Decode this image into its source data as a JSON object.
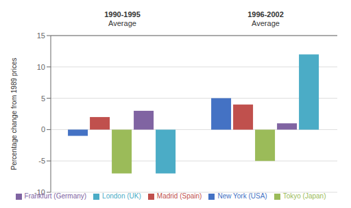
{
  "chart_data": {
    "type": "bar",
    "categories": [
      "1990-1995\nAverage",
      "1996-2002\nAverage"
    ],
    "series": [
      {
        "name": "New York (USA)",
        "color": "#4472C4",
        "values": [
          -1,
          5
        ]
      },
      {
        "name": "Madrid (Spain)",
        "color": "#C0504D",
        "values": [
          2,
          4
        ]
      },
      {
        "name": "Tokyo (Japan)",
        "color": "#9BBB59",
        "values": [
          -7,
          -5
        ]
      },
      {
        "name": "Frankfurt (Germany)",
        "color": "#8064A2",
        "values": [
          3,
          1
        ]
      },
      {
        "name": "London (UK)",
        "color": "#4BACC6",
        "values": [
          -7,
          12
        ]
      }
    ],
    "ylabel": "Percentage change from 1989 prices",
    "ylim": [
      -10,
      15
    ],
    "yticks": [
      -10,
      -5,
      0,
      5,
      10,
      15
    ],
    "grid": true,
    "legend": "bottom"
  }
}
